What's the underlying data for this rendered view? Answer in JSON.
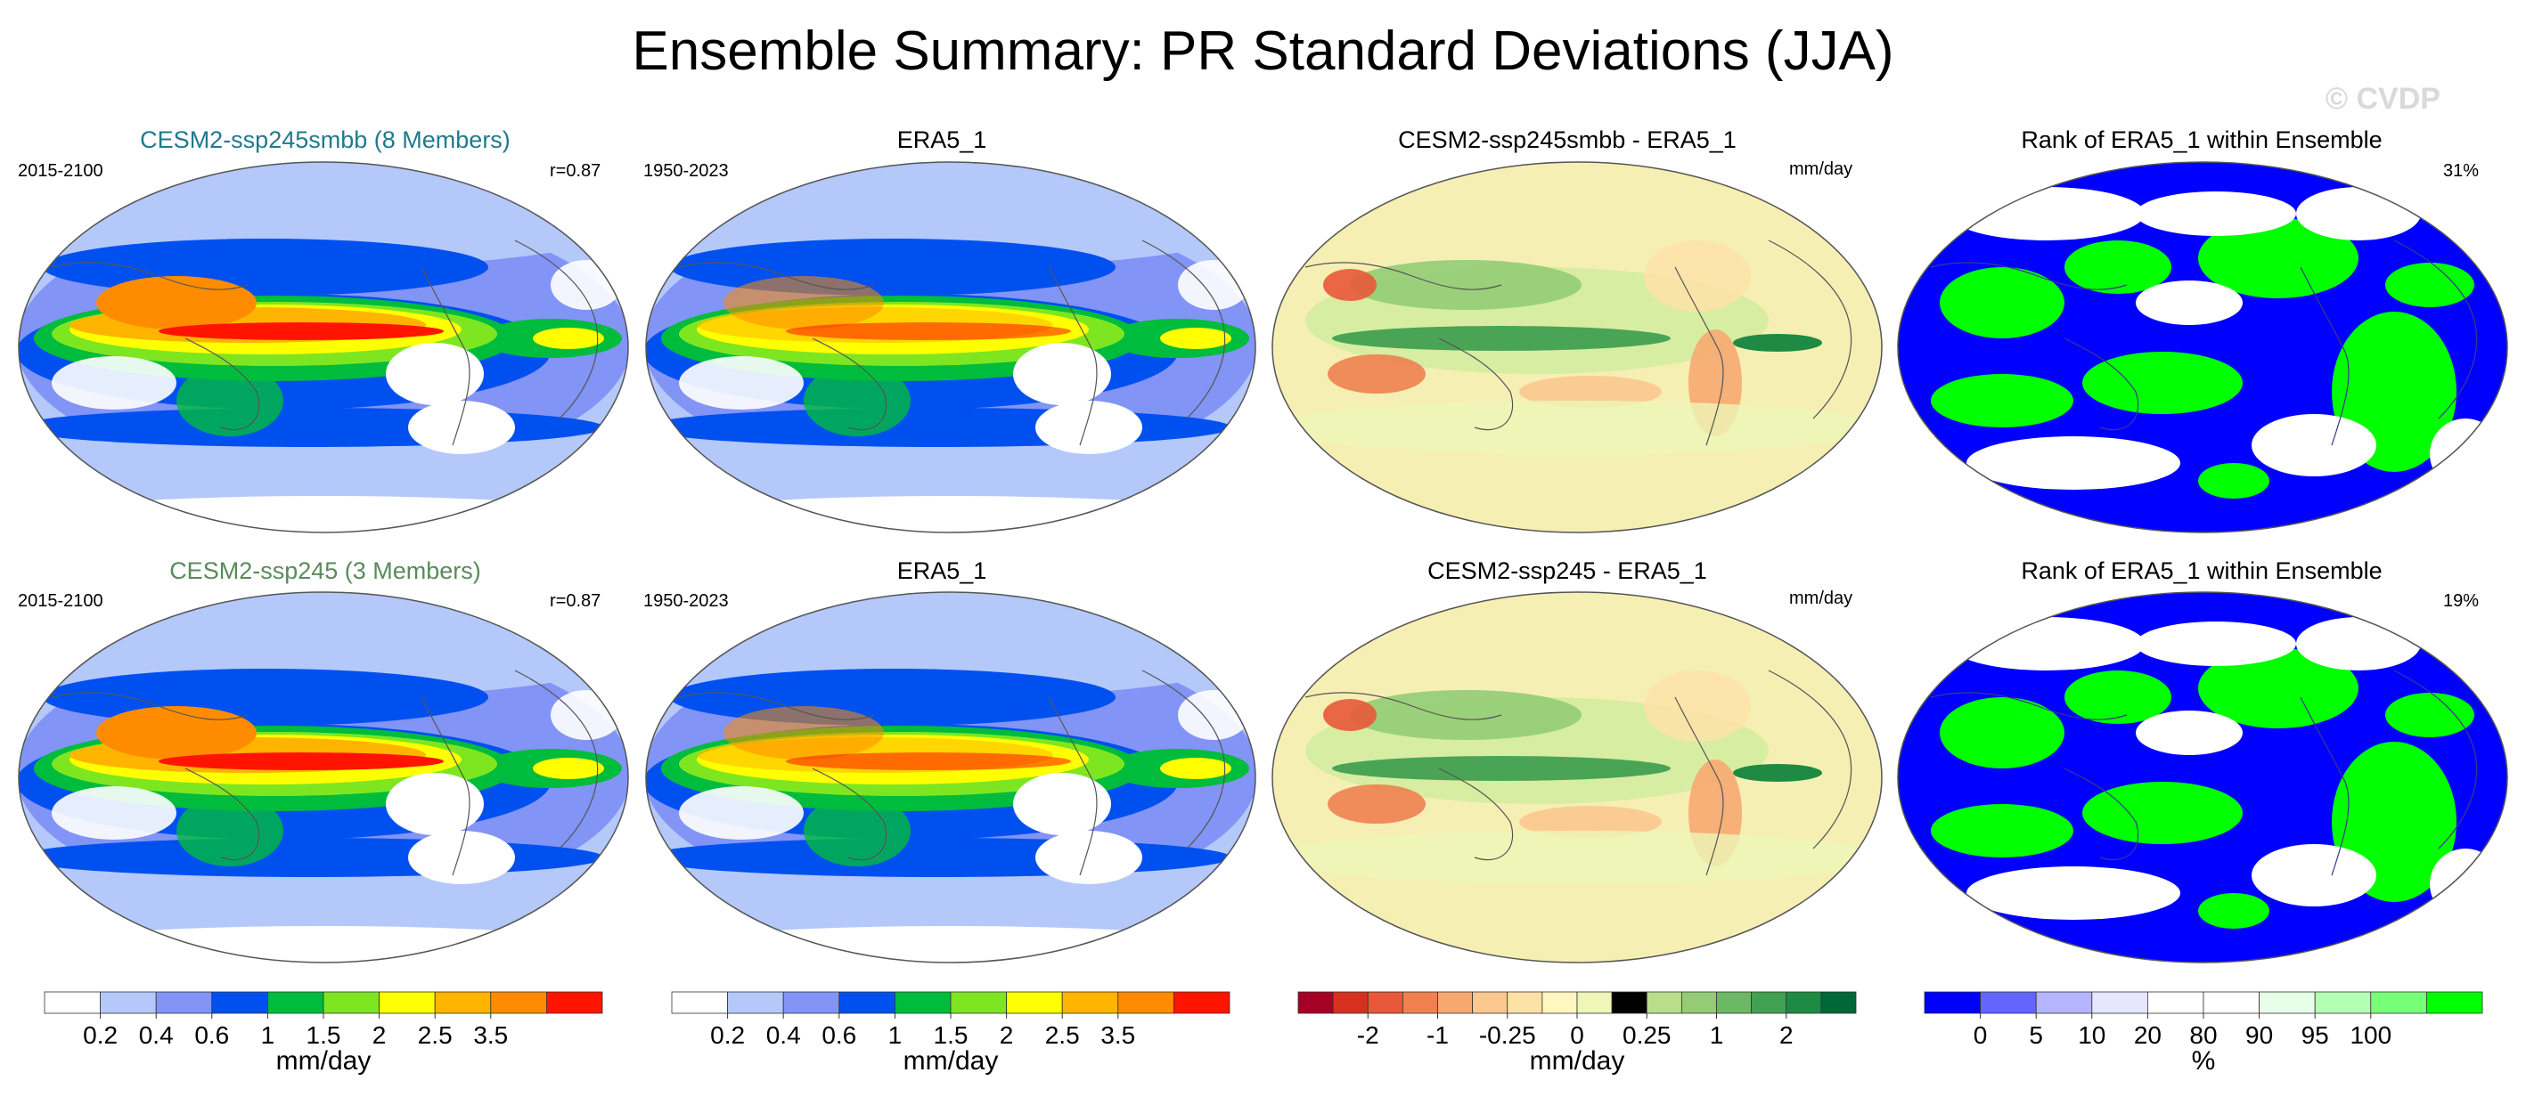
{
  "title": "Ensemble Summary: PR Standard Deviations (JJA)",
  "watermark": "© CVDP",
  "panels": [
    {
      "id": "r0c0",
      "title": "CESM2-ssp245smbb (8 Members)",
      "title_color": "#1f7a8c",
      "left": "2015-2100",
      "right": "r=0.87",
      "kind": "std"
    },
    {
      "id": "r0c1",
      "title": "ERA5_1",
      "title_color": "#000000",
      "left": "1950-2023",
      "right": "",
      "kind": "std_obs"
    },
    {
      "id": "r0c2",
      "title": "CESM2-ssp245smbb - ERA5_1",
      "title_color": "#000000",
      "left": "",
      "right": "mm/day",
      "kind": "diff"
    },
    {
      "id": "r0c3",
      "title": "Rank of ERA5_1 within Ensemble",
      "title_color": "#000000",
      "left": "",
      "right": "31%",
      "kind": "rank"
    },
    {
      "id": "r1c0",
      "title": "CESM2-ssp245 (3 Members)",
      "title_color": "#5a8a5a",
      "left": "2015-2100",
      "right": "r=0.87",
      "kind": "std"
    },
    {
      "id": "r1c1",
      "title": "ERA5_1",
      "title_color": "#000000",
      "left": "1950-2023",
      "right": "",
      "kind": "std_obs"
    },
    {
      "id": "r1c2",
      "title": "CESM2-ssp245 - ERA5_1",
      "title_color": "#000000",
      "left": "",
      "right": "mm/day",
      "kind": "diff"
    },
    {
      "id": "r1c3",
      "title": "Rank of ERA5_1 within Ensemble",
      "title_color": "#000000",
      "left": "",
      "right": "19%",
      "kind": "rank"
    }
  ],
  "colorbars": [
    {
      "id": "cb-std-1",
      "units": "mm/day",
      "colors": [
        "#ffffff",
        "#b4c8fa",
        "#8294f5",
        "#0050f0",
        "#00bc3c",
        "#7ee620",
        "#ffff00",
        "#ffb400",
        "#ff8c00",
        "#ff1400"
      ],
      "labels": [
        "0.2",
        "0.4",
        "0.6",
        "1",
        "1.5",
        "2",
        "2.5",
        "3.5"
      ]
    },
    {
      "id": "cb-std-2",
      "units": "mm/day",
      "colors": [
        "#ffffff",
        "#b4c8fa",
        "#8294f5",
        "#0050f0",
        "#00bc3c",
        "#7ee620",
        "#ffff00",
        "#ffb400",
        "#ff8c00",
        "#ff1400"
      ],
      "labels": [
        "0.2",
        "0.4",
        "0.6",
        "1",
        "1.5",
        "2",
        "2.5",
        "3.5"
      ]
    },
    {
      "id": "cb-diff",
      "units": "mm/day",
      "colors": [
        "#a50026",
        "#d7301f",
        "#e9583a",
        "#f08050",
        "#f7a870",
        "#fbc890",
        "#fde2a8",
        "#fff6c0",
        "#eef6b8",
        "#d4ecа0",
        "#b8de8a",
        "#94cc76",
        "#6cb864",
        "#42a052",
        "#1e8a44",
        "#006837"
      ],
      "labels": [
        "-2",
        "-1",
        "-0.25",
        "0",
        "0.25",
        "1",
        "2"
      ],
      "label_slots": [
        2,
        4,
        6,
        8,
        10,
        12,
        14
      ]
    },
    {
      "id": "cb-rank",
      "units": "%",
      "colors": [
        "#0000ff",
        "#6464ff",
        "#b4b4ff",
        "#e6e6ff",
        "#ffffff",
        "#ffffff",
        "#e6ffe6",
        "#b4ffb4",
        "#78ff78",
        "#00ff00"
      ],
      "labels": [
        "0",
        "5",
        "10",
        "20",
        "80",
        "90",
        "95",
        "100"
      ]
    }
  ]
}
